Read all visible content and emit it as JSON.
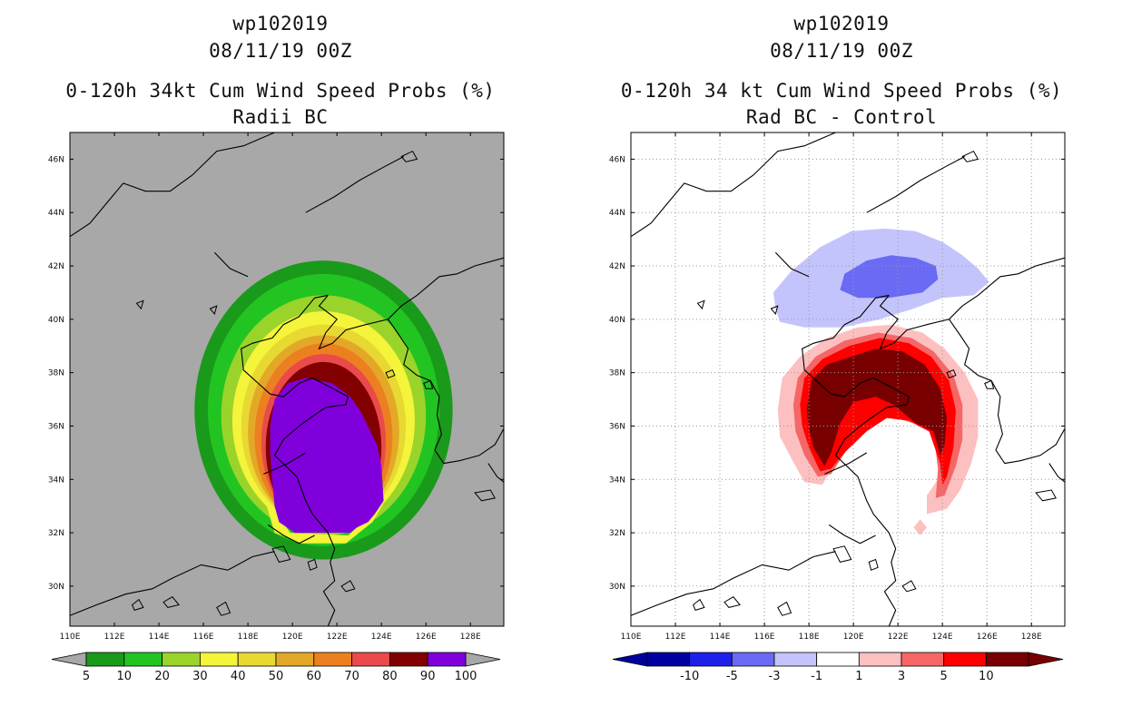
{
  "chart_data": [
    {
      "type": "heatmap",
      "storm_id": "wp102019",
      "datetime": "08/11/19 00Z",
      "title": "0-120h 34kt Cum Wind Speed Probs (%)",
      "subtitle": "Radii BC",
      "x_ticks": [
        "110E",
        "112E",
        "114E",
        "116E",
        "118E",
        "120E",
        "122E",
        "124E",
        "126E",
        "128E"
      ],
      "y_ticks": [
        "30N",
        "32N",
        "34N",
        "36N",
        "38N",
        "40N",
        "42N",
        "44N",
        "46N"
      ],
      "xlim": [
        110,
        129.5
      ],
      "ylim": [
        28.5,
        47
      ],
      "grid": false,
      "background_color": "#a8a8a8",
      "colorbar": {
        "labels": [
          "5",
          "10",
          "20",
          "30",
          "40",
          "50",
          "60",
          "70",
          "80",
          "90",
          "100"
        ],
        "colors": [
          "#1a9a1a",
          "#22c422",
          "#9ad42a",
          "#f4f43a",
          "#e8d832",
          "#e4a828",
          "#ec8020",
          "#ea4a4a",
          "#820000",
          "#8000dc"
        ]
      },
      "contours": [
        {
          "level": "5",
          "color": "#1a9a1a",
          "center": [
            121.4,
            36.6
          ],
          "rx": 5.8,
          "ry": 5.6
        },
        {
          "level": "10",
          "color": "#22c422",
          "center": [
            121.4,
            36.6
          ],
          "rx": 5.2,
          "ry": 5.1
        },
        {
          "level": "20",
          "color": "#9ad42a",
          "center": [
            121.4,
            36.4
          ],
          "rx": 4.6,
          "ry": 4.5
        },
        {
          "level": "30",
          "color": "#f4f43a",
          "center": [
            121.4,
            36.2
          ],
          "rx": 4.1,
          "ry": 4.1
        },
        {
          "level": "40",
          "color": "#e8d832",
          "center": [
            121.4,
            36.0
          ],
          "rx": 3.7,
          "ry": 3.8
        },
        {
          "level": "50",
          "color": "#e4a828",
          "center": [
            121.4,
            35.8
          ],
          "rx": 3.4,
          "ry": 3.6
        },
        {
          "level": "60",
          "color": "#ec8020",
          "center": [
            121.4,
            35.6
          ],
          "rx": 3.1,
          "ry": 3.5
        },
        {
          "level": "70",
          "color": "#ea4a4a",
          "center": [
            121.4,
            35.4
          ],
          "rx": 2.8,
          "ry": 3.3
        },
        {
          "level": "80",
          "color": "#820000",
          "center": [
            121.4,
            35.2
          ],
          "rx": 2.6,
          "ry": 3.2
        }
      ]
    },
    {
      "type": "heatmap",
      "storm_id": "wp102019",
      "datetime": "08/11/19 00Z",
      "title": "0-120h 34 kt Cum Wind Speed Probs (%)",
      "subtitle": "Rad BC - Control",
      "x_ticks": [
        "110E",
        "112E",
        "114E",
        "116E",
        "118E",
        "120E",
        "122E",
        "124E",
        "126E",
        "128E"
      ],
      "y_ticks": [
        "30N",
        "32N",
        "34N",
        "36N",
        "38N",
        "40N",
        "42N",
        "44N",
        "46N"
      ],
      "xlim": [
        110,
        129.5
      ],
      "ylim": [
        28.5,
        47
      ],
      "grid": true,
      "background_color": "#ffffff",
      "colorbar": {
        "labels": [
          "-10",
          "-5",
          "-3",
          "-1",
          "1",
          "3",
          "5",
          "10"
        ],
        "colors": [
          "#0000a0",
          "#1f1fec",
          "#6a6af4",
          "#c4c4fc",
          "#ffffff",
          "#fcc0c0",
          "#f66666",
          "#ff0000",
          "#780000"
        ]
      },
      "contours": [
        {
          "level": "-1",
          "color": "#c4c4fc"
        },
        {
          "level": "-3",
          "color": "#6a6af4"
        },
        {
          "level": "1",
          "color": "#fcc0c0"
        },
        {
          "level": "3",
          "color": "#f66666"
        },
        {
          "level": "5",
          "color": "#ff0000"
        },
        {
          "level": "10",
          "color": "#780000"
        }
      ]
    }
  ]
}
